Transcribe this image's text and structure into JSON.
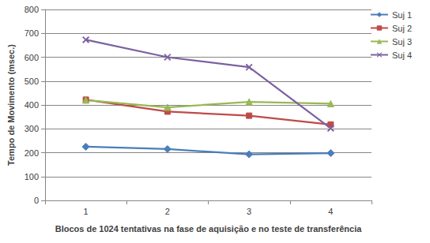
{
  "chart_data": {
    "type": "line",
    "x_label": "Blocos de 1024 tentativas na fase de aquisição e no teste de transferência",
    "y_label": "Tempo de Movimento (msec.)",
    "categories": [
      "1",
      "2",
      "3",
      "4"
    ],
    "series": [
      {
        "name": "Suj 1",
        "color": "#4a7ebb",
        "marker": "diamond",
        "values": [
          225,
          215,
          193,
          198
        ]
      },
      {
        "name": "Suj 2",
        "color": "#be4b48",
        "marker": "square",
        "values": [
          422,
          372,
          355,
          318
        ]
      },
      {
        "name": "Suj 3",
        "color": "#98b954",
        "marker": "triangle",
        "values": [
          420,
          390,
          413,
          405
        ]
      },
      {
        "name": "Suj 4",
        "color": "#7d60a0",
        "marker": "x",
        "values": [
          673,
          600,
          558,
          302
        ]
      }
    ],
    "ylim": [
      0,
      800
    ],
    "yticks": [
      0,
      100,
      200,
      300,
      400,
      500,
      600,
      700,
      800
    ],
    "grid": true,
    "legend": "right"
  }
}
